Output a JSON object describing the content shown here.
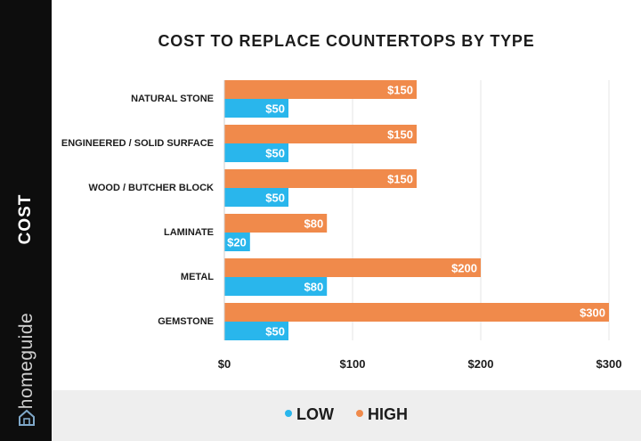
{
  "brand": {
    "name": "homeguide"
  },
  "chart_data": {
    "type": "bar",
    "orientation": "horizontal",
    "title": "COST TO REPLACE COUNTERTOPS BY TYPE",
    "ylabel": "COST",
    "categories": [
      "NATURAL STONE",
      "ENGINEERED / SOLID SURFACE",
      "WOOD / BUTCHER BLOCK",
      "LAMINATE",
      "METAL",
      "GEMSTONE"
    ],
    "series": [
      {
        "name": "HIGH",
        "color": "#f08a4b",
        "values": [
          150,
          150,
          150,
          80,
          200,
          300
        ],
        "labels": [
          "$150",
          "$150",
          "$150",
          "$80",
          "$200",
          "$300"
        ]
      },
      {
        "name": "LOW",
        "color": "#29b6ec",
        "values": [
          50,
          50,
          50,
          20,
          80,
          50
        ],
        "labels": [
          "$50",
          "$50",
          "$50",
          "$20",
          "$80",
          "$50"
        ]
      }
    ],
    "xlim": [
      0,
      300
    ],
    "xticks": [
      0,
      100,
      200,
      300
    ],
    "xtick_labels": [
      "$0",
      "$100",
      "$200",
      "$300"
    ],
    "grid": true,
    "legend_position": "bottom"
  },
  "legend": [
    {
      "label": "LOW",
      "color": "#29b6ec"
    },
    {
      "label": "HIGH",
      "color": "#f08a4b"
    }
  ]
}
